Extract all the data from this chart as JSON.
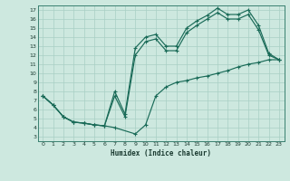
{
  "xlabel": "Humidex (Indice chaleur)",
  "bg_color": "#cde8df",
  "grid_color": "#a8cfc4",
  "line_color": "#1a6b58",
  "xlim": [
    -0.5,
    23.5
  ],
  "ylim": [
    2.5,
    17.5
  ],
  "yticks": [
    3,
    4,
    5,
    6,
    7,
    8,
    9,
    10,
    11,
    12,
    13,
    14,
    15,
    16,
    17
  ],
  "xticks": [
    0,
    1,
    2,
    3,
    4,
    5,
    6,
    7,
    8,
    9,
    10,
    11,
    12,
    13,
    14,
    15,
    16,
    17,
    18,
    19,
    20,
    21,
    22,
    23
  ],
  "line1_x": [
    0,
    1,
    2,
    3,
    4,
    5,
    6,
    7,
    9,
    10,
    11,
    12,
    13,
    14,
    15,
    16,
    17,
    18,
    19,
    20,
    21,
    22,
    23
  ],
  "line1_y": [
    7.5,
    6.5,
    5.2,
    4.6,
    4.5,
    4.3,
    4.2,
    4.0,
    3.3,
    4.3,
    7.5,
    8.5,
    9.0,
    9.2,
    9.5,
    9.7,
    10.0,
    10.3,
    10.7,
    11.0,
    11.2,
    11.5,
    11.5
  ],
  "line2_x": [
    0,
    1,
    2,
    3,
    4,
    5,
    6,
    7,
    8,
    9,
    10,
    11,
    12,
    13,
    14,
    15,
    16,
    17,
    18,
    19,
    20,
    21,
    22,
    23
  ],
  "line2_y": [
    7.5,
    6.5,
    5.2,
    4.6,
    4.5,
    4.3,
    4.2,
    8.0,
    5.5,
    12.8,
    14.0,
    14.3,
    13.0,
    13.0,
    15.0,
    15.8,
    16.4,
    17.2,
    16.5,
    16.5,
    17.0,
    15.3,
    12.2,
    11.5
  ],
  "line3_x": [
    0,
    1,
    2,
    3,
    4,
    5,
    6,
    7,
    8,
    9,
    10,
    11,
    12,
    13,
    14,
    15,
    16,
    17,
    18,
    19,
    20,
    21,
    22,
    23
  ],
  "line3_y": [
    7.5,
    6.5,
    5.2,
    4.6,
    4.5,
    4.3,
    4.2,
    7.5,
    5.2,
    12.0,
    13.5,
    13.8,
    12.5,
    12.5,
    14.5,
    15.3,
    16.0,
    16.7,
    16.0,
    16.0,
    16.5,
    14.8,
    12.0,
    11.5
  ]
}
